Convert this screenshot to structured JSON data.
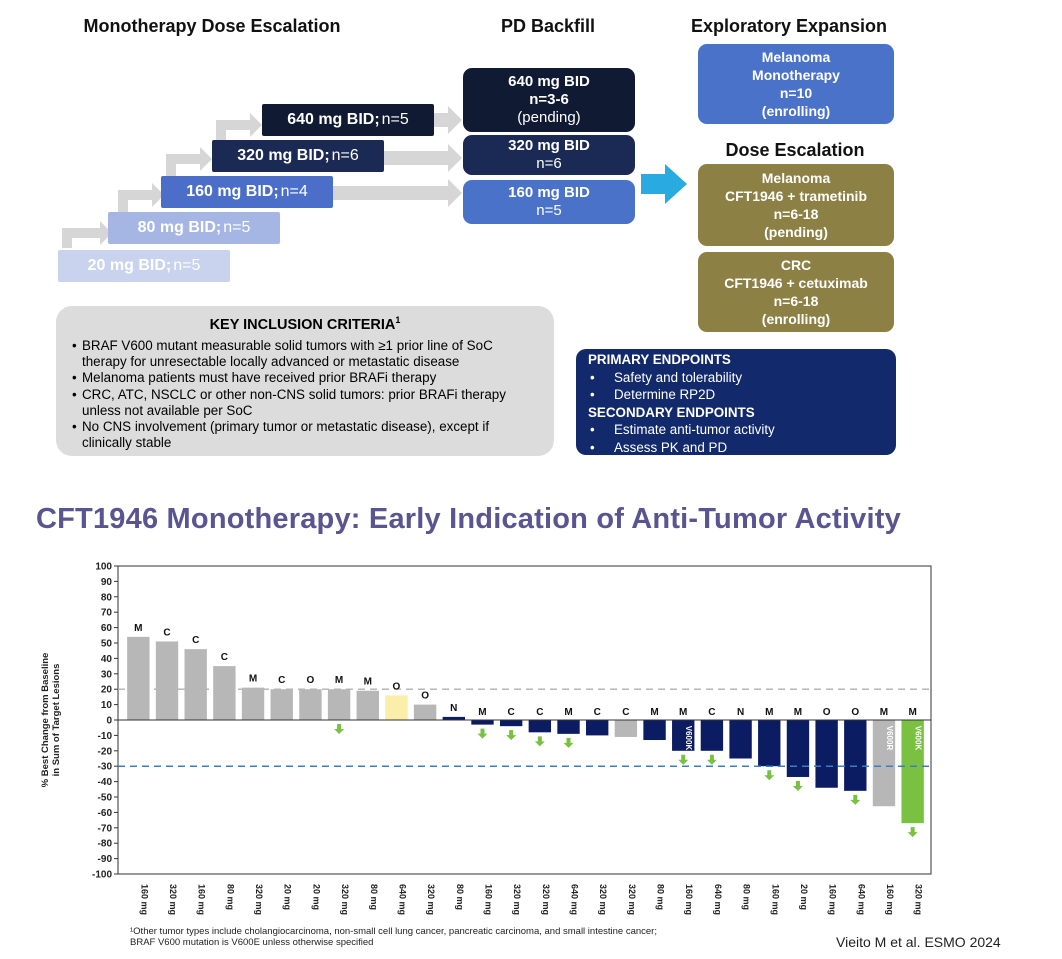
{
  "headers": {
    "mono": "Monotherapy Dose Escalation",
    "backfill": "PD Backfill",
    "explore": "Exploratory Expansion",
    "dose_esc": "Dose Escalation"
  },
  "steps": [
    {
      "dose": "20 mg BID;",
      "n": "n=5",
      "color": "#c9d3ee"
    },
    {
      "dose": "80 mg BID;",
      "n": "n=5",
      "color": "#a6b6e4"
    },
    {
      "dose": "160 mg BID;",
      "n": "n=4",
      "color": "#4b6fc8"
    },
    {
      "dose": "320 mg BID;",
      "n": "n=6",
      "color": "#1b2a55"
    },
    {
      "dose": "640 mg BID;",
      "n": "n=5",
      "color": "#101a33"
    }
  ],
  "backfill": [
    {
      "l1": "640 mg BID",
      "l2": "n=3-6",
      "l3": "(pending)"
    },
    {
      "l1": "320 mg BID",
      "l2": "n=6"
    },
    {
      "l1": "160 mg BID",
      "l2": "n=5"
    }
  ],
  "expansion": {
    "l1": "Melanoma",
    "l2": "Monotherapy",
    "l3": "n=10",
    "l4": "(enrolling)"
  },
  "combo": [
    {
      "l1": "Melanoma",
      "l2": "CFT1946 + trametinib",
      "l3": "n=6-18",
      "l4": "(pending)"
    },
    {
      "l1": "CRC",
      "l2": "CFT1946 + cetuximab",
      "l3": "n=6-18",
      "l4": "(enrolling)"
    }
  ],
  "key_criteria": {
    "title": "KEY INCLUSION CRITERIA",
    "sup": "1",
    "items": [
      "BRAF V600 mutant measurable solid tumors with ≥1 prior line of SoC therapy for unresectable locally advanced or metastatic disease",
      "Melanoma patients must have received prior BRAFi therapy",
      "CRC, ATC, NSCLC or other non-CNS solid tumors: prior BRAFi therapy unless not available per SoC",
      "No CNS involvement (primary tumor or metastatic disease), except if clinically stable"
    ]
  },
  "endpoints": {
    "primary_title": "PRIMARY ENDPOINTS",
    "primary": [
      "Safety and tolerability",
      "Determine RP2D"
    ],
    "secondary_title": "SECONDARY ENDPOINTS",
    "secondary": [
      "Estimate anti-tumor activity",
      "Assess PK and PD"
    ]
  },
  "section_title": "CFT1946 Monotherapy: Early Indication of Anti-Tumor Activity",
  "chart_data": {
    "type": "bar",
    "ylabel": "% Best Change from Baseline in Sum of Target Lesions",
    "ylabel_lines": [
      "% Best Change from Baseline",
      "in Sum of Target Lesions"
    ],
    "ylim": [
      -100,
      100
    ],
    "yticks": [
      100,
      90,
      80,
      70,
      60,
      50,
      40,
      30,
      20,
      10,
      0,
      -10,
      -20,
      -30,
      -40,
      -50,
      -60,
      -70,
      -80,
      -90,
      -100
    ],
    "reference_lines": [
      20,
      -30
    ],
    "categories": [
      "160 mg",
      "320 mg",
      "160 mg",
      "80 mg",
      "320 mg",
      "20 mg",
      "20 mg",
      "320 mg",
      "80 mg",
      "640 mg",
      "320 mg",
      "80 mg",
      "160 mg",
      "320 mg",
      "320 mg",
      "640 mg",
      "320 mg",
      "320 mg",
      "80 mg",
      "160 mg",
      "640 mg",
      "80 mg",
      "160 mg",
      "20 mg",
      "160 mg",
      "640 mg",
      "160 mg",
      "320 mg"
    ],
    "values": [
      54,
      51,
      46,
      35,
      21,
      20,
      20,
      20,
      19,
      16,
      10,
      2,
      -3,
      -4,
      -8,
      -9,
      -10,
      -11,
      -13,
      -20,
      -20,
      -25,
      -30,
      -37,
      -44,
      -46,
      -56,
      -67
    ],
    "tumor_type": [
      "M",
      "C",
      "C",
      "C",
      "M",
      "C",
      "O",
      "M",
      "M",
      "O",
      "O",
      "N",
      "M",
      "C",
      "C",
      "M",
      "C",
      "C",
      "M",
      "M",
      "C",
      "N",
      "M",
      "M",
      "O",
      "O",
      "M",
      "M"
    ],
    "fill": [
      "#b7b7b7",
      "#b7b7b7",
      "#b7b7b7",
      "#b7b7b7",
      "#b7b7b7",
      "#b7b7b7",
      "#b7b7b7",
      "#b7b7b7",
      "#b7b7b7",
      "#fbeea8",
      "#b7b7b7",
      "#0b1c63",
      "#0b1c63",
      "#0b1c63",
      "#0b1c63",
      "#0b1c63",
      "#0b1c63",
      "#b7b7b7",
      "#0b1c63",
      "#0b1c63",
      "#0b1c63",
      "#0b1c63",
      "#0b1c63",
      "#0b1c63",
      "#0b1c63",
      "#0b1c63",
      "#b7b7b7",
      "#7ac142"
    ],
    "ongoing_arrow": [
      false,
      false,
      false,
      false,
      false,
      false,
      false,
      true,
      false,
      false,
      false,
      false,
      true,
      true,
      true,
      true,
      false,
      false,
      false,
      true,
      true,
      false,
      true,
      true,
      false,
      true,
      false,
      true
    ],
    "mutation_labels": [
      null,
      null,
      null,
      null,
      null,
      null,
      null,
      null,
      null,
      null,
      null,
      null,
      null,
      null,
      null,
      null,
      null,
      null,
      null,
      "V600K",
      null,
      null,
      null,
      null,
      null,
      null,
      "V600R",
      "V600K"
    ],
    "arrow_color": "#7ac142",
    "ref_line_color_upper": "#b0b0b0",
    "ref_line_color_lower": "#3a7fc2"
  },
  "footnote": [
    "¹Other tumor types include cholangiocarcinoma, non-small cell lung cancer, pancreatic carcinoma, and small intestine cancer;",
    "BRAF V600 mutation is V600E unless otherwise specified"
  ],
  "citation": "Vieito M et al. ESMO 2024",
  "colors": {
    "title_purple": "#5a5490",
    "cyan_arrow": "#29abe2",
    "olive": "#8d8044",
    "navy": "#122a6b",
    "mid_blue": "#4a72c9"
  }
}
